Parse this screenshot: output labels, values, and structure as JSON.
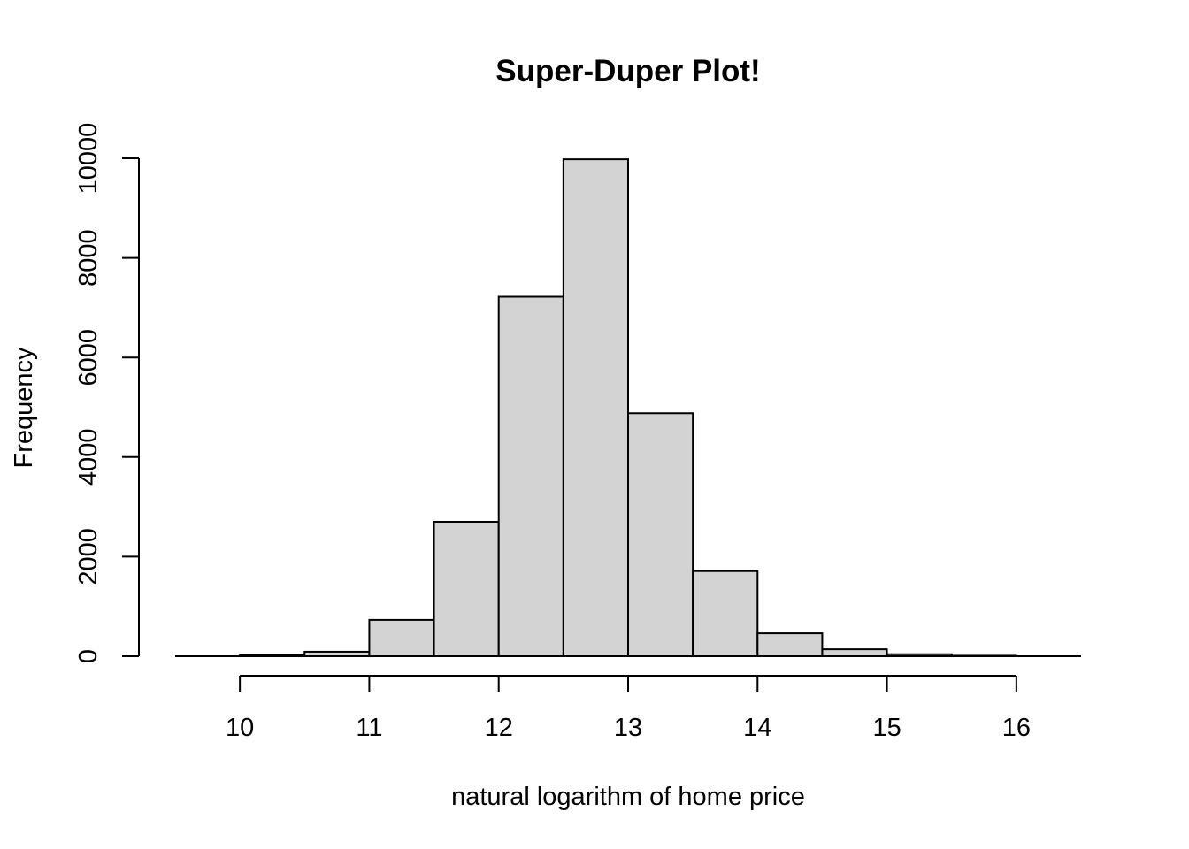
{
  "chart_data": {
    "type": "bar",
    "title": "Super-Duper Plot!",
    "xlabel": "natural logarithm of home price",
    "ylabel": "Frequency",
    "bin_edges": [
      10,
      10.5,
      11,
      11.5,
      12,
      12.5,
      13,
      13.5,
      14,
      14.5,
      15,
      15.5,
      16
    ],
    "values": [
      20,
      90,
      730,
      2700,
      7220,
      9980,
      4880,
      1710,
      460,
      140,
      40,
      10
    ],
    "xlim": [
      9.5,
      16.5
    ],
    "ylim": [
      0,
      10000
    ],
    "x_ticks": [
      10,
      11,
      12,
      13,
      14,
      15,
      16
    ],
    "y_ticks": [
      0,
      2000,
      4000,
      6000,
      8000,
      10000
    ],
    "bar_fill": "#d3d3d3",
    "bar_stroke": "#000000",
    "grid": false,
    "legend": "none"
  }
}
